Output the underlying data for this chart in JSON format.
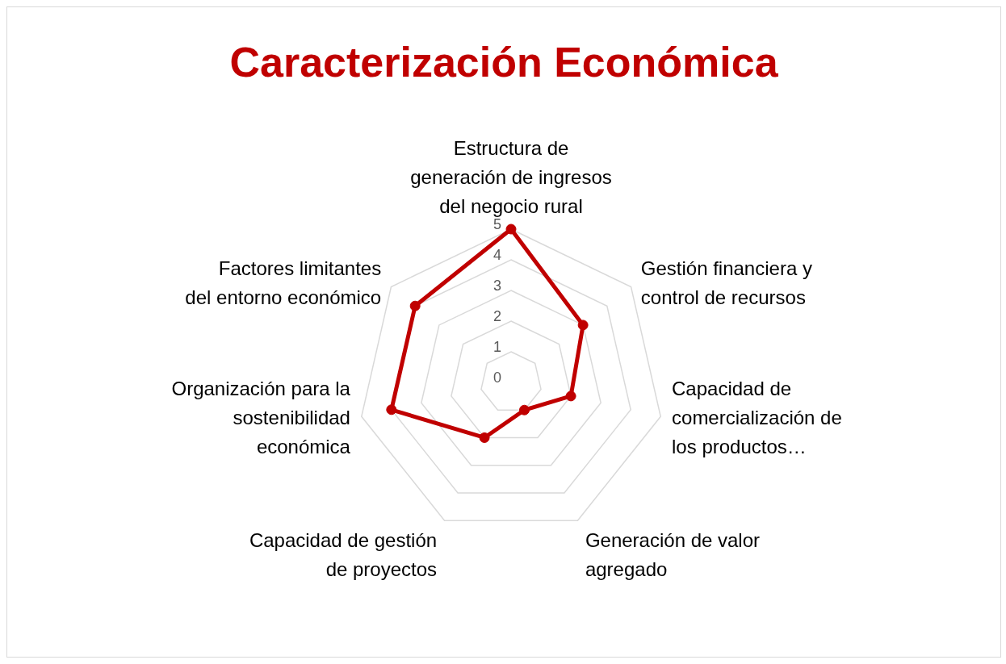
{
  "chart_data": {
    "type": "radar",
    "title": "Caracterización Económica",
    "categories": [
      "Estructura de generación de ingresos del negocio rural",
      "Gestión financiera y control de recursos",
      "Capacidad de comercialización de los productos…",
      "Generación de valor agregado",
      "Capacidad de gestión de proyectos",
      "Organización para la sostenibilidad económica",
      "Factores limitantes del entorno económico"
    ],
    "series": [
      {
        "color": "#c00000",
        "values": [
          5,
          3,
          2,
          1,
          2,
          4,
          4
        ]
      }
    ],
    "ylim": [
      0,
      5
    ],
    "yticks": [
      0,
      1,
      2,
      3,
      4,
      5
    ],
    "grid": true,
    "marker": "circle",
    "legend": false
  }
}
